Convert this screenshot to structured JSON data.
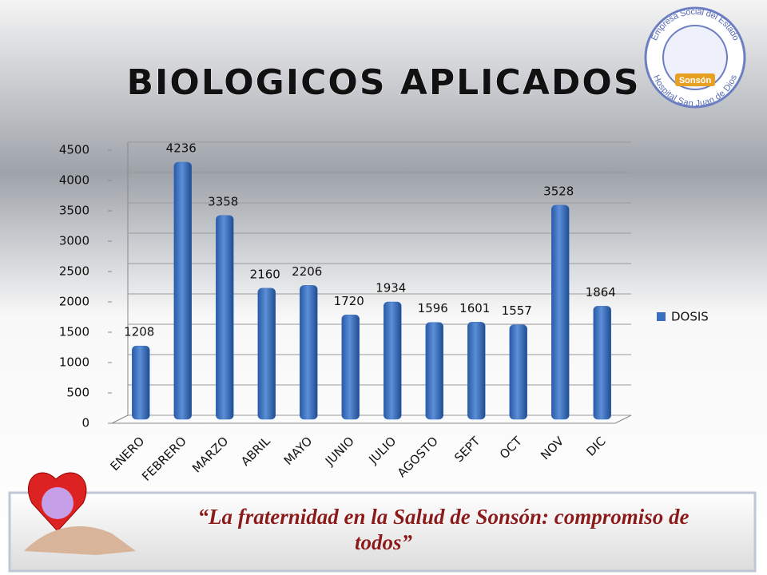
{
  "chart_data": {
    "type": "bar",
    "title": "BIOLOGICOS APLICADOS",
    "categories": [
      "ENERO",
      "FEBRERO",
      "MARZO",
      "ABRIL",
      "MAYO",
      "JUNIO",
      "JULIO",
      "AGOSTO",
      "SEPT",
      "OCT",
      "NOV",
      "DIC"
    ],
    "series": [
      {
        "name": "DOSIS",
        "color": "#3a6fc0",
        "values": [
          1208,
          4236,
          3358,
          2160,
          2206,
          1720,
          1934,
          1596,
          1601,
          1557,
          3528,
          1864
        ]
      }
    ],
    "ylim": [
      0,
      4500
    ],
    "yticks": [
      0,
      500,
      1000,
      1500,
      2000,
      2500,
      3000,
      3500,
      4000,
      4500
    ],
    "grid": true,
    "legend": "right"
  },
  "logo": {
    "top_text": "Empresa Social del Estado",
    "center_text": "Sonsón",
    "bottom_text": "Hospital San Juan de Dios"
  },
  "banner": {
    "line1": "“La fraternidad en la Salud de Sonsón: compromiso de",
    "line2": "todos”"
  }
}
